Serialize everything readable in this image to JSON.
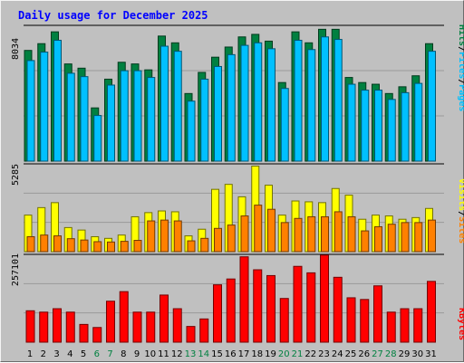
{
  "title": "Daily usage for December 2025",
  "colors": {
    "hits": "#008040",
    "files": "#00c0ff",
    "sites": "#ff8000",
    "visits": "#ffff00",
    "kbytes": "#ff0000",
    "weekday_label": "#000000",
    "weekend_label": "#008040",
    "title": "#0000ff",
    "plot_bg": "#c0c0c0"
  },
  "legend": {
    "top": [
      "Hits",
      "/",
      "Files",
      "/",
      "Pages"
    ],
    "middle": [
      "Visits",
      "/",
      "Sites"
    ],
    "bottom": [
      "KBytes"
    ]
  },
  "chart_data": [
    {
      "type": "bar",
      "panel": "hits-files-pages",
      "ymax_label": "8034",
      "ylim": [
        0,
        8034
      ],
      "categories": [
        "1",
        "2",
        "3",
        "4",
        "5",
        "6",
        "7",
        "8",
        "9",
        "10",
        "11",
        "12",
        "13",
        "14",
        "15",
        "16",
        "17",
        "18",
        "19",
        "20",
        "21",
        "22",
        "23",
        "24",
        "25",
        "26",
        "27",
        "28",
        "29",
        "30",
        "31"
      ],
      "series": [
        {
          "name": "Hits",
          "values": [
            6550,
            6950,
            7650,
            5750,
            5500,
            3150,
            4850,
            5850,
            5750,
            5400,
            7400,
            7000,
            4000,
            5250,
            6150,
            6750,
            7350,
            7500,
            7100,
            4650,
            7650,
            7000,
            7800,
            7800,
            4950,
            4650,
            4550,
            4000,
            4400,
            5050,
            6950
          ]
        },
        {
          "name": "Files",
          "values": [
            5950,
            6450,
            7150,
            5200,
            5000,
            2700,
            4500,
            5350,
            5350,
            4950,
            6800,
            6500,
            3550,
            4850,
            5600,
            6300,
            6850,
            7000,
            6650,
            4300,
            7150,
            6600,
            7350,
            7200,
            4550,
            4200,
            4200,
            3650,
            4050,
            4600,
            6500
          ]
        },
        {
          "name": "Pages",
          "values": [
            0,
            0,
            0,
            0,
            0,
            0,
            0,
            0,
            0,
            0,
            0,
            0,
            0,
            0,
            0,
            0,
            0,
            0,
            0,
            0,
            0,
            0,
            0,
            0,
            0,
            0,
            0,
            0,
            0,
            0,
            0
          ]
        }
      ]
    },
    {
      "type": "bar",
      "panel": "visits-sites",
      "ymax_label": "5285",
      "ylim": [
        0,
        5285
      ],
      "categories": [
        "1",
        "2",
        "3",
        "4",
        "5",
        "6",
        "7",
        "8",
        "9",
        "10",
        "11",
        "12",
        "13",
        "14",
        "15",
        "16",
        "17",
        "18",
        "19",
        "20",
        "21",
        "22",
        "23",
        "24",
        "25",
        "26",
        "27",
        "28",
        "29",
        "30",
        "31"
      ],
      "series": [
        {
          "name": "Visits",
          "values": [
            2200,
            2650,
            2950,
            1450,
            1300,
            900,
            800,
            1000,
            2100,
            2350,
            2450,
            2400,
            950,
            1350,
            3750,
            4050,
            3300,
            5150,
            4000,
            2200,
            3050,
            3000,
            2950,
            3800,
            3400,
            1950,
            2200,
            2150,
            1950,
            2050,
            2600
          ]
        },
        {
          "name": "Sites",
          "values": [
            900,
            1000,
            950,
            780,
            700,
            600,
            580,
            620,
            680,
            1850,
            1900,
            1850,
            650,
            800,
            1400,
            1600,
            2150,
            2800,
            2550,
            1750,
            2000,
            2100,
            2100,
            2400,
            2100,
            1250,
            1500,
            1650,
            1750,
            1750,
            1900
          ]
        }
      ]
    },
    {
      "type": "bar",
      "panel": "kbytes",
      "ymax_label": "257101",
      "ylim": [
        0,
        257101
      ],
      "categories": [
        "1",
        "2",
        "3",
        "4",
        "5",
        "6",
        "7",
        "8",
        "9",
        "10",
        "11",
        "12",
        "13",
        "14",
        "15",
        "16",
        "17",
        "18",
        "19",
        "20",
        "21",
        "22",
        "23",
        "24",
        "25",
        "26",
        "27",
        "28",
        "29",
        "30",
        "31"
      ],
      "series": [
        {
          "name": "KBytes",
          "values": [
            92000,
            88000,
            98000,
            88000,
            52000,
            43000,
            120000,
            148000,
            88000,
            88000,
            138000,
            98000,
            46000,
            68000,
            168000,
            185000,
            250000,
            212000,
            195000,
            128000,
            222000,
            203000,
            255000,
            190000,
            130000,
            125000,
            165000,
            88000,
            98000,
            98000,
            178000
          ]
        }
      ]
    }
  ],
  "x_labels": [
    {
      "text": "1",
      "weekend": false
    },
    {
      "text": "2",
      "weekend": false
    },
    {
      "text": "3",
      "weekend": false
    },
    {
      "text": "4",
      "weekend": false
    },
    {
      "text": "5",
      "weekend": false
    },
    {
      "text": "6",
      "weekend": true
    },
    {
      "text": "7",
      "weekend": true
    },
    {
      "text": "8",
      "weekend": false
    },
    {
      "text": "9",
      "weekend": false
    },
    {
      "text": "10",
      "weekend": false
    },
    {
      "text": "11",
      "weekend": false
    },
    {
      "text": "12",
      "weekend": false
    },
    {
      "text": "13",
      "weekend": true
    },
    {
      "text": "14",
      "weekend": true
    },
    {
      "text": "15",
      "weekend": false
    },
    {
      "text": "16",
      "weekend": false
    },
    {
      "text": "17",
      "weekend": false
    },
    {
      "text": "18",
      "weekend": false
    },
    {
      "text": "19",
      "weekend": false
    },
    {
      "text": "20",
      "weekend": true
    },
    {
      "text": "21",
      "weekend": true
    },
    {
      "text": "22",
      "weekend": false
    },
    {
      "text": "23",
      "weekend": false
    },
    {
      "text": "24",
      "weekend": false
    },
    {
      "text": "25",
      "weekend": false
    },
    {
      "text": "26",
      "weekend": false
    },
    {
      "text": "27",
      "weekend": true
    },
    {
      "text": "28",
      "weekend": true
    },
    {
      "text": "29",
      "weekend": false
    },
    {
      "text": "30",
      "weekend": false
    },
    {
      "text": "31",
      "weekend": false
    }
  ]
}
